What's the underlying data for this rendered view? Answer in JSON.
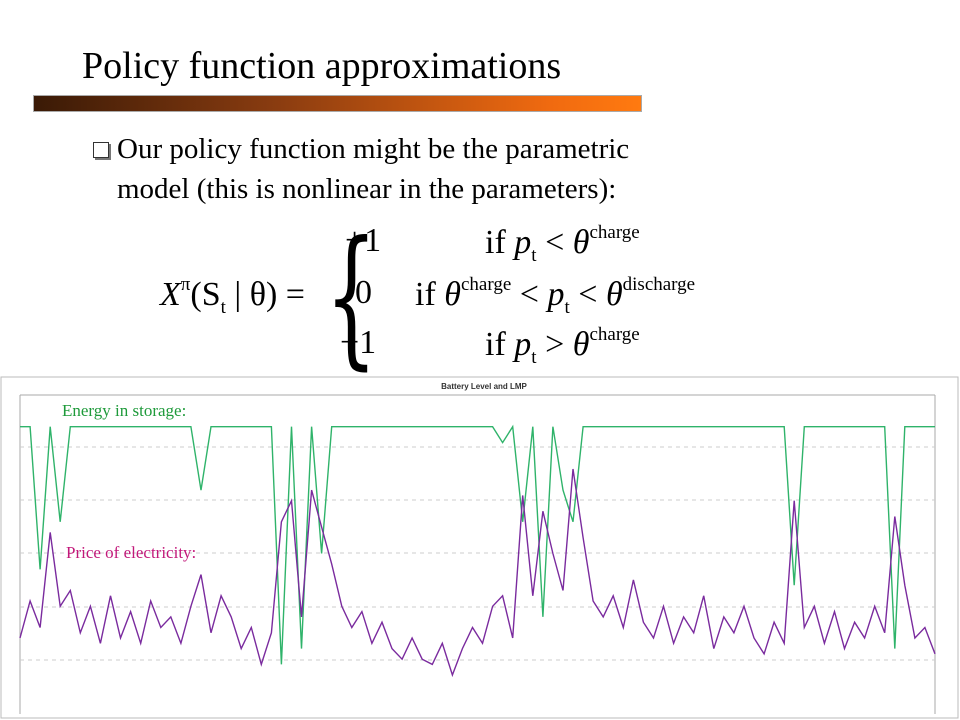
{
  "slide": {
    "title": "Policy function approximations",
    "bullet": [
      "Our policy function might be the parametric",
      "model (this is nonlinear in the parameters):"
    ],
    "formula": {
      "lhs": [
        "X",
        "π",
        "(S",
        "t",
        " | θ) ="
      ],
      "cases": [
        {
          "value": "+1",
          "condition": [
            "if",
            "p",
            "t",
            "<",
            "θ",
            "charge"
          ]
        },
        {
          "value": "0",
          "condition": [
            "if",
            "θ",
            "charge",
            "<",
            "p",
            "t",
            "<",
            "θ",
            "discharge"
          ]
        },
        {
          "value": "−1",
          "condition": [
            "if",
            "p",
            "t",
            ">",
            "θ",
            "charge"
          ]
        }
      ]
    }
  },
  "chart_data": {
    "type": "line",
    "title": "Battery Level and LMP",
    "ylim": [
      0,
      6
    ],
    "y2lim": [
      0,
      1
    ],
    "series": [
      {
        "name": "Energy in storage:",
        "color": "#2fb36a",
        "axis": "y2",
        "values": [
          0.9,
          0.9,
          0.45,
          0.9,
          0.6,
          0.9,
          0.9,
          0.9,
          0.9,
          0.9,
          0.9,
          0.9,
          0.9,
          0.9,
          0.9,
          0.9,
          0.9,
          0.9,
          0.7,
          0.9,
          0.9,
          0.9,
          0.9,
          0.9,
          0.9,
          0.9,
          0.15,
          0.9,
          0.2,
          0.9,
          0.5,
          0.9,
          0.9,
          0.9,
          0.9,
          0.9,
          0.9,
          0.9,
          0.9,
          0.9,
          0.9,
          0.9,
          0.9,
          0.9,
          0.9,
          0.9,
          0.9,
          0.9,
          0.85,
          0.9,
          0.6,
          0.9,
          0.3,
          0.9,
          0.7,
          0.6,
          0.9,
          0.9,
          0.9,
          0.9,
          0.9,
          0.9,
          0.9,
          0.9,
          0.9,
          0.9,
          0.9,
          0.9,
          0.9,
          0.9,
          0.9,
          0.9,
          0.9,
          0.9,
          0.9,
          0.9,
          0.9,
          0.4,
          0.9,
          0.9,
          0.9,
          0.9,
          0.9,
          0.9,
          0.9,
          0.9,
          0.9,
          0.2,
          0.9,
          0.9,
          0.9,
          0.9
        ]
      },
      {
        "name": "Price of electricity:",
        "color": "#7a2b9e",
        "values": [
          1.4,
          2.1,
          1.6,
          3.4,
          2.0,
          2.3,
          1.5,
          2.0,
          1.3,
          2.2,
          1.4,
          1.9,
          1.3,
          2.1,
          1.6,
          1.8,
          1.3,
          2.0,
          2.6,
          1.5,
          2.2,
          1.8,
          1.2,
          1.6,
          0.9,
          1.5,
          3.6,
          4.0,
          1.8,
          4.2,
          3.5,
          2.8,
          2.0,
          1.6,
          1.9,
          1.3,
          1.7,
          1.2,
          1.0,
          1.4,
          1.0,
          0.9,
          1.3,
          0.7,
          1.2,
          1.6,
          1.3,
          2.0,
          2.2,
          1.4,
          4.1,
          2.2,
          3.8,
          3.0,
          2.3,
          4.6,
          3.3,
          2.1,
          1.8,
          2.2,
          1.6,
          2.5,
          1.7,
          1.4,
          2.0,
          1.3,
          1.8,
          1.5,
          2.2,
          1.2,
          1.8,
          1.5,
          2.0,
          1.4,
          1.1,
          1.7,
          1.3,
          4.0,
          1.6,
          2.0,
          1.3,
          1.9,
          1.2,
          1.7,
          1.4,
          2.0,
          1.5,
          3.7,
          2.4,
          1.4,
          1.6,
          1.1
        ]
      }
    ]
  }
}
